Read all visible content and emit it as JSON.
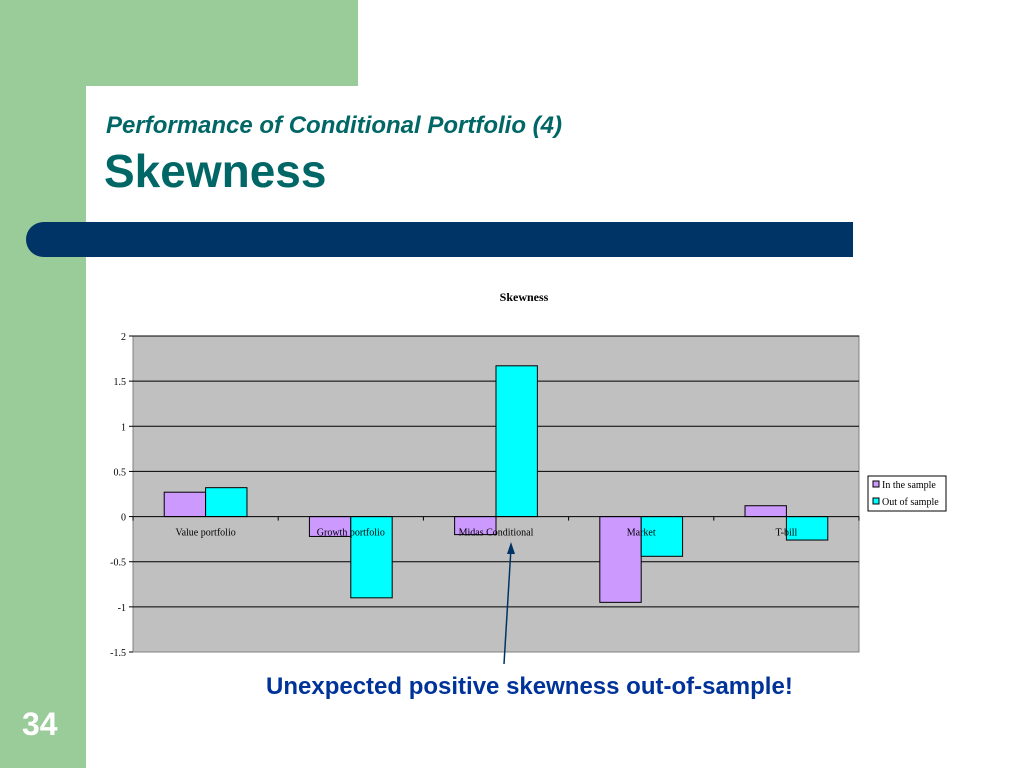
{
  "slide": {
    "subtitle": "Performance of Conditional Portfolio (4)",
    "title": "Skewness",
    "annotation": "Unexpected positive skewness out-of-sample!",
    "slide_number": "34",
    "colors": {
      "frame_green": "#99cc99",
      "heading_teal": "#006666",
      "bar_navy": "#003366",
      "annotation_blue": "#003399"
    }
  },
  "chart_data": {
    "type": "bar",
    "title": "Skewness",
    "xlabel": "",
    "ylabel": "",
    "categories": [
      "Value portfolio",
      "Growth portfolio",
      "Midas Conditional",
      "Market",
      "T-bill"
    ],
    "series": [
      {
        "name": "In the sample",
        "values": [
          0.27,
          -0.22,
          -0.2,
          -0.95,
          0.12
        ],
        "color": "#cc99ff"
      },
      {
        "name": "Out of sample",
        "values": [
          0.32,
          -0.9,
          1.67,
          -0.44,
          -0.26
        ],
        "color": "#00ffff"
      }
    ],
    "ylim": [
      -1.5,
      2
    ],
    "yticks": [
      "-1.5",
      "-1",
      "-0.5",
      "0",
      "0.5",
      "1",
      "1.5",
      "2"
    ],
    "grid": true,
    "legend": "right",
    "plot_background": "#c0c0c0"
  }
}
